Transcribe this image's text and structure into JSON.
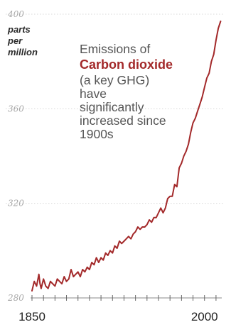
{
  "chart_data": {
    "type": "line",
    "title": "",
    "xlabel": "",
    "ylabel": "parts per million",
    "ylabel_lines": [
      "parts",
      "per",
      "million"
    ],
    "xlim": [
      1850,
      2015
    ],
    "ylim": [
      280,
      400
    ],
    "yticks": [
      280,
      320,
      360,
      400
    ],
    "xtick_labels": [
      1850,
      2000
    ],
    "grid": true,
    "annotation": {
      "lines": [
        "Emissions of",
        "Carbon dioxide",
        "(a key GHG)",
        "have",
        "significantly",
        "increased since",
        "1900s"
      ],
      "highlight_index": 1
    },
    "colors": {
      "line": "#a3292a",
      "highlight": "#a3292a",
      "grid": "#d8d8d8",
      "tick": "#a8a8a8"
    },
    "series": [
      {
        "x": [
          1850,
          1852,
          1854,
          1856,
          1857,
          1858,
          1860,
          1862,
          1864,
          1866,
          1868,
          1870,
          1872,
          1874,
          1876,
          1878,
          1880,
          1882,
          1884,
          1886,
          1888,
          1890,
          1892,
          1894,
          1896,
          1898,
          1900,
          1902,
          1904,
          1906,
          1908,
          1910,
          1912,
          1914,
          1916,
          1918,
          1920,
          1922,
          1924,
          1926,
          1928,
          1930,
          1932,
          1934,
          1936,
          1938,
          1940,
          1942,
          1944,
          1946,
          1948,
          1950,
          1952,
          1954,
          1956,
          1958,
          1960,
          1962,
          1964,
          1966,
          1968,
          1970,
          1972,
          1974,
          1976,
          1978,
          1980,
          1982,
          1984,
          1986,
          1988,
          1990,
          1992,
          1994,
          1996,
          1998,
          2000,
          2002,
          2004,
          2006,
          2008,
          2010,
          2012,
          2014
        ],
        "y": [
          283,
          287,
          285,
          290,
          286,
          284,
          288,
          285,
          284,
          287,
          286,
          285,
          288,
          287,
          286,
          289,
          287,
          288,
          292,
          289,
          290,
          291,
          289,
          292,
          291,
          293,
          292,
          295,
          294,
          297,
          295,
          297,
          296,
          299,
          298,
          300,
          299,
          302,
          301,
          304,
          303,
          304,
          305,
          306,
          305,
          307,
          308,
          310,
          309,
          310,
          310,
          311,
          313,
          312,
          314,
          314,
          316,
          318,
          316,
          318,
          322,
          323,
          323,
          328,
          327,
          335,
          337,
          340,
          342,
          345,
          350,
          354,
          356,
          359,
          362,
          365,
          369,
          373,
          375,
          380,
          383,
          389,
          394,
          397
        ]
      }
    ]
  }
}
